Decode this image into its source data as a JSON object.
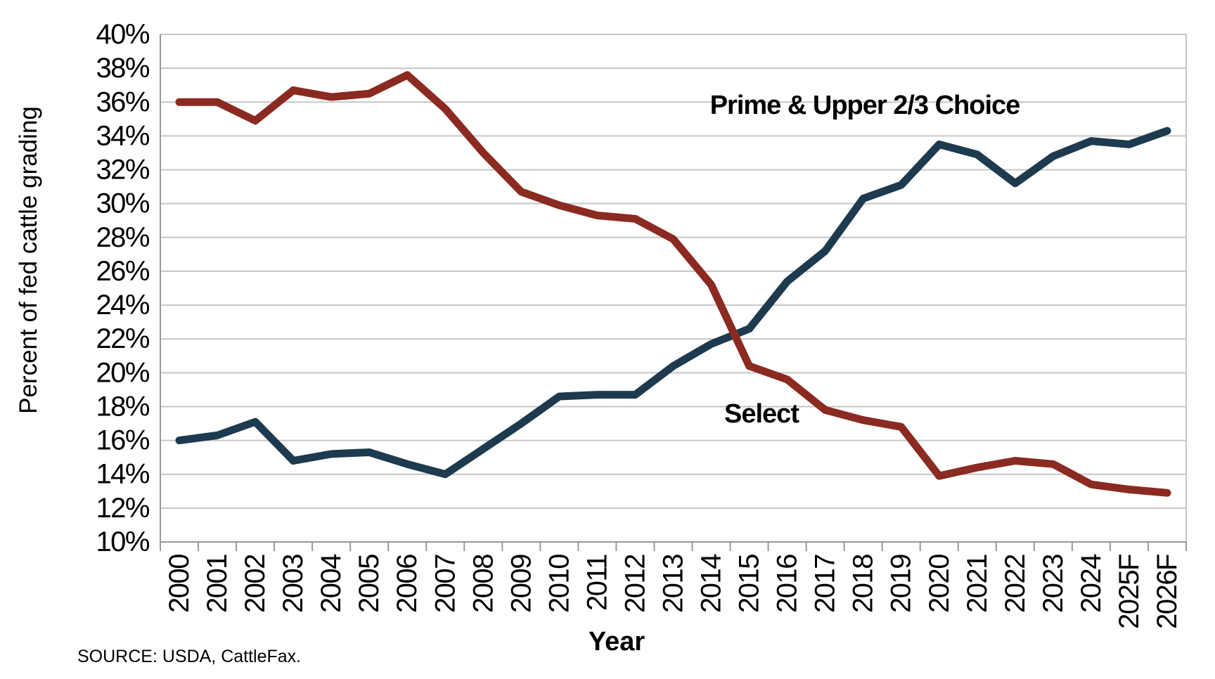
{
  "chart_data": {
    "type": "line",
    "title": "",
    "xlabel": "Year",
    "ylabel": "Percent of fed cattle grading",
    "source_note": "SOURCE: USDA, CattleFax.",
    "grid": "horizontal",
    "legend_position": "inline-annotations",
    "ylim": [
      10,
      40
    ],
    "ytick_step": 2,
    "yticks": [
      "10%",
      "12%",
      "14%",
      "16%",
      "18%",
      "20%",
      "22%",
      "24%",
      "26%",
      "28%",
      "30%",
      "32%",
      "34%",
      "36%",
      "38%",
      "40%"
    ],
    "categories": [
      "2000",
      "2001",
      "2002",
      "2003",
      "2004",
      "2005",
      "2006",
      "2007",
      "2008",
      "2009",
      "2010",
      "2011",
      "2012",
      "2013",
      "2014",
      "2015",
      "2016",
      "2017",
      "2018",
      "2019",
      "2020",
      "2021",
      "2022",
      "2023",
      "2024",
      "2025F",
      "2026F"
    ],
    "series": [
      {
        "name": "Prime & Upper 2/3 Choice",
        "color": "#1d3a4f",
        "values": [
          16.0,
          16.3,
          17.1,
          14.8,
          15.2,
          15.3,
          14.6,
          14.0,
          15.5,
          17.0,
          18.6,
          18.7,
          18.7,
          20.4,
          21.7,
          22.6,
          25.4,
          27.2,
          30.3,
          31.1,
          33.5,
          32.9,
          31.2,
          32.8,
          33.7,
          33.5,
          34.3
        ]
      },
      {
        "name": "Select",
        "color": "#8b2a21",
        "values": [
          36.0,
          36.0,
          34.9,
          36.7,
          36.3,
          36.5,
          37.6,
          35.6,
          33.0,
          30.7,
          29.9,
          29.3,
          29.1,
          27.9,
          25.2,
          20.4,
          19.6,
          17.8,
          17.2,
          16.8,
          13.9,
          14.4,
          14.8,
          14.6,
          13.4,
          13.1,
          12.9
        ]
      }
    ],
    "axis_colors": {
      "gridline": "#c6c6c6",
      "axis_line": "#999999",
      "tick": "#999999",
      "text": "#000000"
    }
  }
}
